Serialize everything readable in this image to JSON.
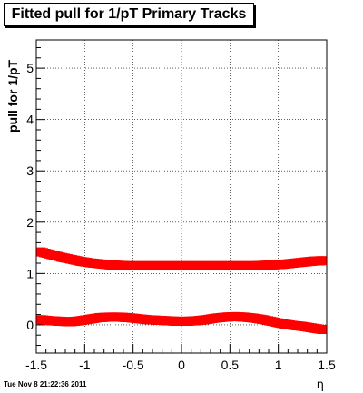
{
  "title": "Fitted pull for 1/pT  Primary Tracks",
  "footer": "Tue Nov  8 21:22:36 2011",
  "chart_data": {
    "type": "scatter",
    "title": "Fitted pull for 1/pT  Primary Tracks",
    "xlabel": "η",
    "ylabel": "pull for 1/pT",
    "xlim": [
      -1.5,
      1.5
    ],
    "ylim": [
      -0.55,
      5.55
    ],
    "grid": true,
    "xticks": [
      -1.5,
      -1,
      -0.5,
      0,
      0.5,
      1,
      1.5
    ],
    "xtick_labels": [
      "-1.5",
      "-1",
      "-0.5",
      "0",
      "0.5",
      "1",
      "1.5"
    ],
    "yticks": [
      0,
      1,
      2,
      3,
      4,
      5
    ],
    "ytick_labels": [
      "0",
      "1",
      "2",
      "3",
      "4",
      "5"
    ],
    "colors": {
      "points": "#ff0000",
      "points_shadow": "#000000"
    },
    "series": [
      {
        "x": [
          -1.45,
          -1.35,
          -1.25,
          -1.15,
          -1.05,
          -0.95,
          -0.85,
          -0.75,
          -0.65,
          -0.55,
          -0.45,
          -0.35,
          -0.25,
          -0.15,
          -0.05,
          0.05,
          0.15,
          0.25,
          0.35,
          0.45,
          0.55,
          0.65,
          0.75,
          0.85,
          0.95,
          1.05,
          1.15,
          1.25,
          1.35,
          1.45
        ],
        "values": [
          1.42,
          1.37,
          1.32,
          1.28,
          1.24,
          1.21,
          1.19,
          1.17,
          1.16,
          1.15,
          1.15,
          1.15,
          1.15,
          1.15,
          1.15,
          1.15,
          1.15,
          1.15,
          1.15,
          1.15,
          1.15,
          1.15,
          1.15,
          1.16,
          1.17,
          1.18,
          1.2,
          1.22,
          1.24,
          1.25
        ]
      },
      {
        "x": [
          -1.45,
          -1.35,
          -1.25,
          -1.15,
          -1.05,
          -0.95,
          -0.85,
          -0.75,
          -0.65,
          -0.55,
          -0.45,
          -0.35,
          -0.25,
          -0.15,
          -0.05,
          0.05,
          0.15,
          0.25,
          0.35,
          0.45,
          0.55,
          0.65,
          0.75,
          0.85,
          0.95,
          1.05,
          1.15,
          1.25,
          1.35,
          1.45
        ],
        "values": [
          0.1,
          0.08,
          0.07,
          0.06,
          0.08,
          0.11,
          0.14,
          0.15,
          0.15,
          0.14,
          0.12,
          0.1,
          0.09,
          0.08,
          0.07,
          0.07,
          0.08,
          0.1,
          0.13,
          0.15,
          0.16,
          0.15,
          0.13,
          0.1,
          0.06,
          0.02,
          -0.01,
          -0.03,
          -0.06,
          -0.09
        ]
      }
    ]
  }
}
